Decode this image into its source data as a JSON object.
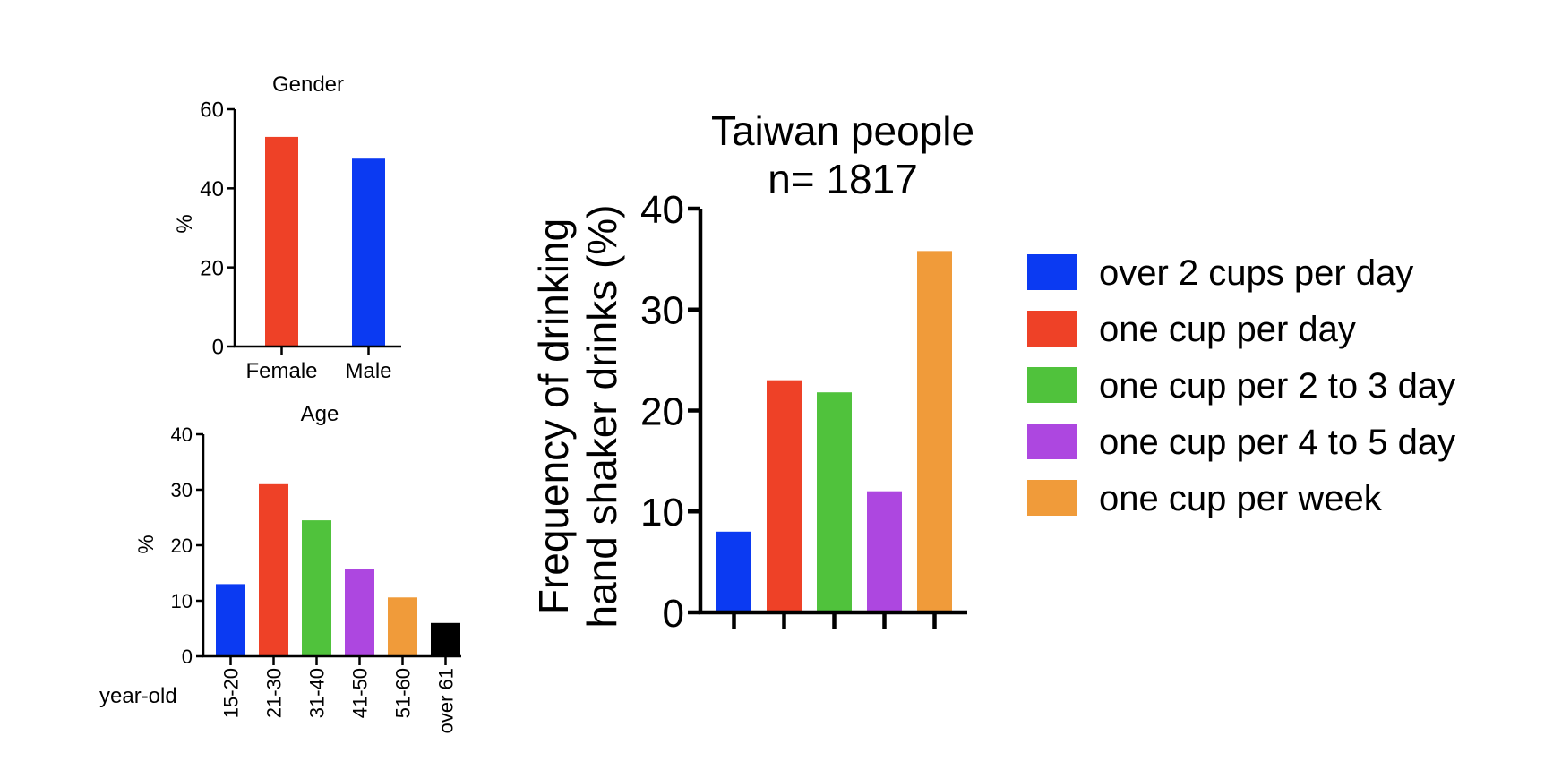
{
  "colors": {
    "blue": "#0b3af2",
    "red": "#ee4127",
    "green": "#50c23c",
    "purple": "#ad47e0",
    "orange": "#f09b3a",
    "black": "#000000"
  },
  "chart_data": [
    {
      "type": "bar",
      "title": "Gender",
      "ylabel": "%",
      "xlabel": "",
      "categories": [
        "Female",
        "Male"
      ],
      "values": [
        53,
        47.5
      ],
      "colors": [
        "#ee4127",
        "#0b3af2"
      ],
      "ylim": [
        0,
        60
      ],
      "yticks": [
        0,
        20,
        40,
        60
      ],
      "grid": false
    },
    {
      "type": "bar",
      "title": "Age",
      "ylabel": "%",
      "xlabel": "year-old",
      "categories": [
        "15-20",
        "21-30",
        "31-40",
        "41-50",
        "51-60",
        "over 61"
      ],
      "values": [
        13,
        31,
        24.5,
        15.7,
        10.6,
        6
      ],
      "colors": [
        "#0b3af2",
        "#ee4127",
        "#50c23c",
        "#ad47e0",
        "#f09b3a",
        "#000000"
      ],
      "ylim": [
        0,
        40
      ],
      "yticks": [
        0,
        10,
        20,
        30,
        40
      ],
      "grid": false
    },
    {
      "type": "bar",
      "title": "Taiwan people",
      "subtitle": "n= 1817",
      "ylabel_lines": [
        "Frequency of drinking",
        "hand shaker drinks (%)"
      ],
      "xlabel": "",
      "categories": [
        "over 2 cups per day",
        "one cup per day",
        "one cup per 2 to 3 day",
        "one cup per 4 to 5 day",
        "one cup per week"
      ],
      "values": [
        8,
        23,
        21.8,
        12,
        35.8
      ],
      "colors": [
        "#0b3af2",
        "#ee4127",
        "#50c23c",
        "#ad47e0",
        "#f09b3a"
      ],
      "ylim": [
        0,
        40
      ],
      "yticks": [
        0,
        10,
        20,
        30,
        40
      ],
      "legend_position": "right",
      "grid": false
    }
  ]
}
